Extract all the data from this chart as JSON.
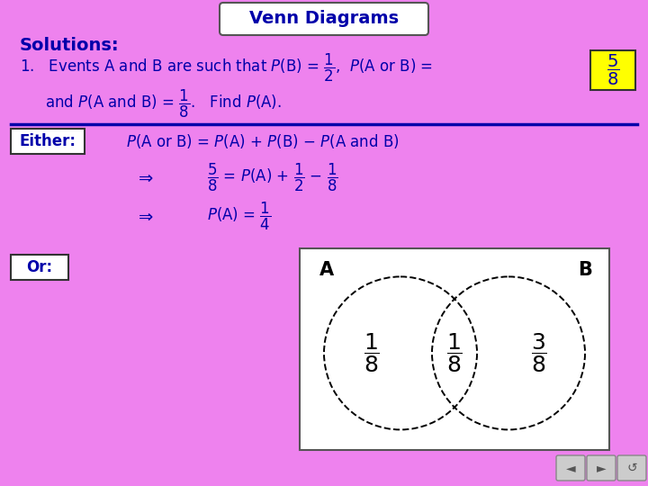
{
  "background_color": "#EE82EE",
  "title_text": "Venn Diagrams",
  "title_fontsize": 14,
  "solutions_text": "Solutions:",
  "divider_color": "#0000AA",
  "text_color": "#0000AA",
  "dark_text": "#000080",
  "main_font_size": 12,
  "either_label": "Either:",
  "or_label": "Or:",
  "venn_A_label": "A",
  "venn_B_label": "B",
  "venn_left_frac_n": "1",
  "venn_left_frac_d": "8",
  "venn_center_frac_n": "1",
  "venn_center_frac_d": "8",
  "venn_right_frac_n": "3",
  "venn_right_frac_d": "8"
}
